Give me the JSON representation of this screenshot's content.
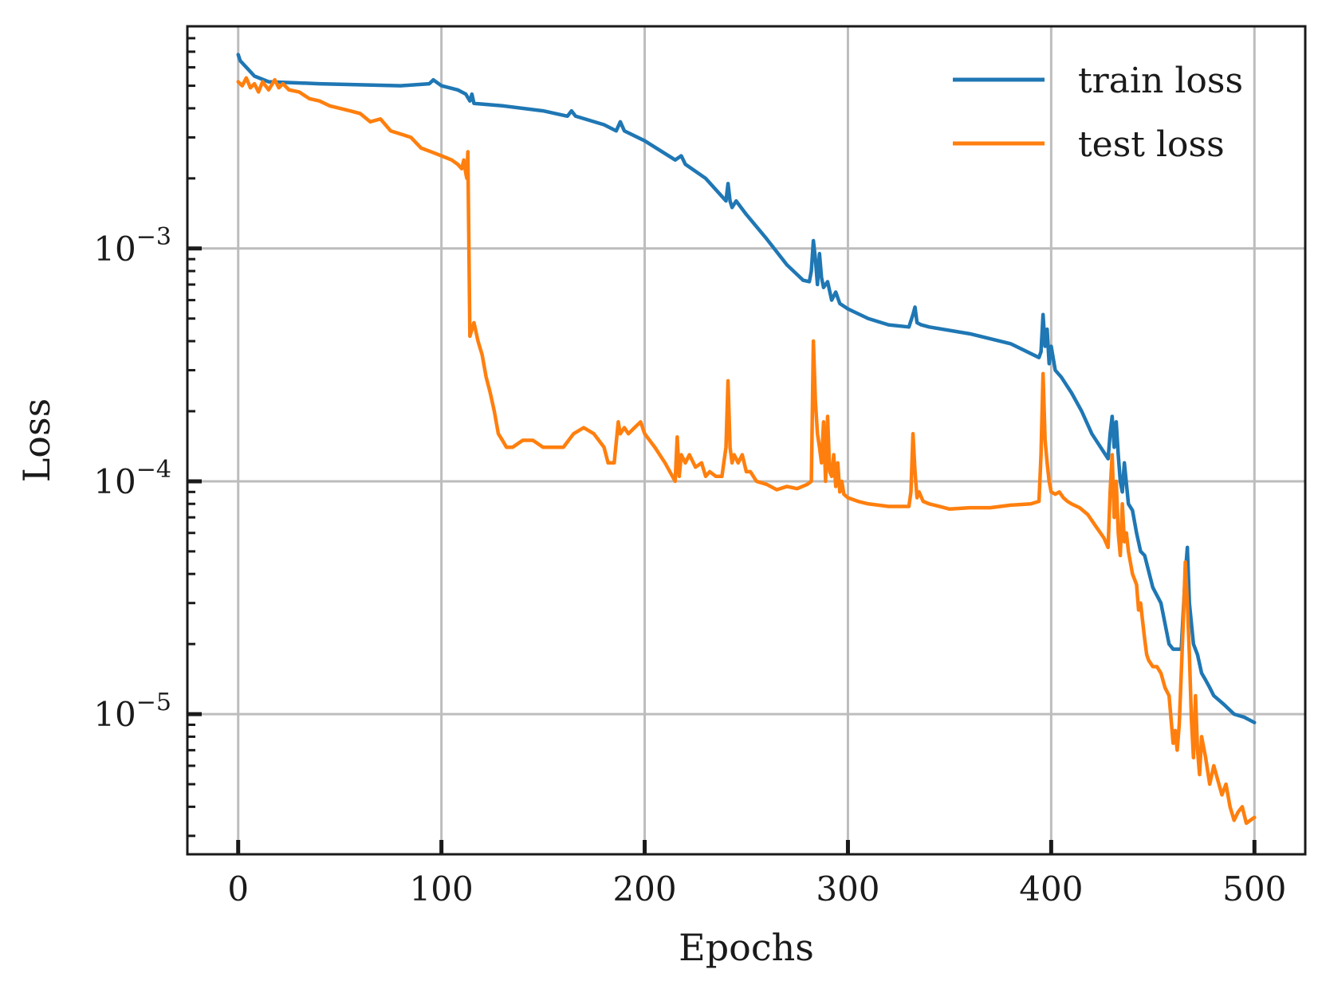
{
  "chart_data": {
    "type": "line",
    "title": "",
    "xlabel": "Epochs",
    "ylabel": "Loss",
    "xlim": [
      -25,
      525
    ],
    "ylim": [
      2.5e-06,
      0.009
    ],
    "yscale": "log",
    "x_ticks": [
      0,
      100,
      200,
      300,
      400,
      500
    ],
    "y_ticks": [
      {
        "value": 0.001,
        "base": "10",
        "exp": "−3"
      },
      {
        "value": 0.0001,
        "base": "10",
        "exp": "−4"
      },
      {
        "value": 1e-05,
        "base": "10",
        "exp": "−5"
      }
    ],
    "grid": true,
    "legend_position": "top-right",
    "series": [
      {
        "name": "train loss",
        "color": "#1f77b4",
        "x": [
          0,
          1,
          4,
          8,
          15,
          40,
          80,
          94,
          96,
          100,
          108,
          112,
          114,
          115,
          116,
          130,
          150,
          162,
          164,
          166,
          180,
          186,
          188,
          190,
          200,
          215,
          218,
          220,
          230,
          240,
          241,
          242,
          243,
          245,
          250,
          260,
          270,
          278,
          281,
          282,
          283,
          284,
          285,
          286,
          287,
          288,
          290,
          292,
          294,
          296,
          300,
          310,
          320,
          330,
          332,
          333,
          334,
          336,
          340,
          360,
          380,
          394,
          395,
          396,
          397,
          398,
          399,
          400,
          402,
          405,
          410,
          415,
          420,
          428,
          429,
          430,
          431,
          432,
          433,
          434,
          435,
          436,
          438,
          440,
          442,
          444,
          446,
          450,
          454,
          458,
          460,
          464,
          466,
          467,
          468,
          470,
          472,
          474,
          476,
          478,
          480,
          485,
          490,
          495,
          500
        ],
        "y": [
          0.0068,
          0.0064,
          0.006,
          0.0055,
          0.0052,
          0.0051,
          0.005,
          0.0051,
          0.0053,
          0.005,
          0.0048,
          0.0046,
          0.0043,
          0.0046,
          0.0042,
          0.0041,
          0.0039,
          0.0037,
          0.0039,
          0.0037,
          0.0034,
          0.0032,
          0.0035,
          0.0032,
          0.0029,
          0.0024,
          0.0025,
          0.0023,
          0.002,
          0.0016,
          0.0019,
          0.0016,
          0.0015,
          0.0016,
          0.0014,
          0.0011,
          0.00085,
          0.00073,
          0.00072,
          0.0008,
          0.00108,
          0.0009,
          0.0007,
          0.00095,
          0.00075,
          0.00068,
          0.00072,
          0.0006,
          0.00065,
          0.00058,
          0.00055,
          0.0005,
          0.00047,
          0.00046,
          0.00052,
          0.00056,
          0.00048,
          0.00047,
          0.00046,
          0.00043,
          0.00039,
          0.00034,
          0.00036,
          0.00052,
          0.00038,
          0.00045,
          0.00032,
          0.00038,
          0.0003,
          0.00028,
          0.00024,
          0.0002,
          0.00016,
          0.000125,
          0.00016,
          0.00019,
          0.00014,
          0.00018,
          0.00013,
          0.0001,
          9e-05,
          0.00012,
          8e-05,
          7.5e-05,
          6e-05,
          5e-05,
          4.8e-05,
          3.5e-05,
          3e-05,
          2e-05,
          1.9e-05,
          1.9e-05,
          4e-05,
          5.2e-05,
          3e-05,
          2e-05,
          1.8e-05,
          1.5e-05,
          1.4e-05,
          1.3e-05,
          1.2e-05,
          1.1e-05,
          1e-05,
          9.7e-06,
          9.2e-06
        ]
      },
      {
        "name": "test loss",
        "color": "#ff7f0e",
        "x": [
          0,
          2,
          4,
          6,
          8,
          10,
          12,
          15,
          18,
          20,
          22,
          25,
          30,
          35,
          40,
          45,
          50,
          55,
          60,
          65,
          70,
          75,
          80,
          85,
          90,
          95,
          100,
          105,
          108,
          110,
          111,
          112,
          112.5,
          113,
          114,
          116,
          118,
          120,
          122,
          124,
          126,
          128,
          130,
          132,
          135,
          140,
          145,
          150,
          155,
          160,
          165,
          170,
          175,
          180,
          182,
          185,
          187,
          188,
          190,
          192,
          195,
          198,
          200,
          205,
          210,
          215,
          216,
          217,
          218,
          220,
          222,
          225,
          228,
          230,
          232,
          235,
          238,
          240,
          241,
          242,
          243,
          244,
          246,
          248,
          250,
          252,
          255,
          260,
          265,
          270,
          275,
          280,
          282,
          283,
          284,
          285,
          286,
          287,
          288,
          289,
          290,
          291,
          292,
          293,
          294,
          295,
          296,
          297,
          298,
          300,
          305,
          310,
          320,
          330,
          331,
          332,
          333,
          334,
          335,
          337,
          340,
          345,
          350,
          360,
          370,
          380,
          390,
          394,
          395,
          396,
          397,
          398,
          399,
          400,
          402,
          404,
          406,
          408,
          410,
          414,
          418,
          422,
          426,
          428,
          429,
          430,
          431,
          432,
          433,
          434,
          435,
          436,
          437,
          438,
          440,
          442,
          443,
          444,
          445,
          446,
          447,
          448,
          450,
          452,
          454,
          456,
          458,
          460,
          461,
          462,
          463,
          464,
          465,
          466,
          467,
          468,
          469,
          470,
          471,
          472,
          473,
          474,
          476,
          478,
          480,
          482,
          484,
          486,
          488,
          490,
          492,
          494,
          496,
          498,
          500
        ],
        "y": [
          0.0052,
          0.005,
          0.0054,
          0.0049,
          0.0051,
          0.0047,
          0.0052,
          0.0048,
          0.0053,
          0.0049,
          0.0051,
          0.0048,
          0.0047,
          0.0044,
          0.0043,
          0.0041,
          0.004,
          0.0039,
          0.0038,
          0.0035,
          0.0036,
          0.0032,
          0.0031,
          0.003,
          0.0027,
          0.0026,
          0.0025,
          0.0024,
          0.0023,
          0.0022,
          0.0024,
          0.0021,
          0.002,
          0.0026,
          0.00042,
          0.00048,
          0.0004,
          0.00035,
          0.00028,
          0.00024,
          0.0002,
          0.00016,
          0.00015,
          0.00014,
          0.00014,
          0.00015,
          0.00015,
          0.00014,
          0.00014,
          0.00014,
          0.00016,
          0.00017,
          0.00016,
          0.00014,
          0.00012,
          0.00012,
          0.00018,
          0.00016,
          0.00017,
          0.00016,
          0.00017,
          0.00018,
          0.00016,
          0.00014,
          0.00012,
          0.0001,
          0.000155,
          0.000105,
          0.00013,
          0.00012,
          0.00013,
          0.000115,
          0.00012,
          0.000105,
          0.00011,
          0.000105,
          0.000105,
          0.00014,
          0.00027,
          0.00014,
          0.00012,
          0.00013,
          0.00012,
          0.00013,
          0.00011,
          0.00011,
          0.0001,
          9.7e-05,
          9.2e-05,
          9.5e-05,
          9.3e-05,
          9.7e-05,
          0.0001,
          0.0004,
          0.00022,
          0.00016,
          0.00014,
          0.00012,
          0.00018,
          0.0001,
          0.00019,
          0.00011,
          0.000105,
          0.00013,
          9.5e-05,
          0.00012,
          9e-05,
          0.0001,
          8.8e-05,
          8.5e-05,
          8.2e-05,
          8e-05,
          7.8e-05,
          7.8e-05,
          9e-05,
          0.00016,
          0.00011,
          8.5e-05,
          9e-05,
          8.2e-05,
          8e-05,
          7.8e-05,
          7.6e-05,
          7.7e-05,
          7.7e-05,
          7.9e-05,
          8e-05,
          8.2e-05,
          0.00013,
          0.00029,
          0.00015,
          0.00012,
          0.0001,
          9e-05,
          8.8e-05,
          9e-05,
          8.5e-05,
          8.2e-05,
          8e-05,
          7.7e-05,
          7.2e-05,
          6.4e-05,
          5.7e-05,
          5.2e-05,
          9e-05,
          0.00013,
          7e-05,
          0.0001,
          6e-05,
          4.8e-05,
          8e-05,
          5.5e-05,
          6e-05,
          5e-05,
          4e-05,
          3.6e-05,
          2.8e-05,
          3e-05,
          2.5e-05,
          2.1e-05,
          1.8e-05,
          1.7e-05,
          1.6e-05,
          1.6e-05,
          1.5e-05,
          1.3e-05,
          1.2e-05,
          7.5e-06,
          8.5e-06,
          7e-06,
          9e-06,
          1.5e-05,
          2.5e-05,
          4.5e-05,
          3e-05,
          1.8e-05,
          9.5e-06,
          6.5e-06,
          1.2e-05,
          7e-06,
          5.5e-06,
          8e-06,
          6.5e-06,
          5e-06,
          6e-06,
          5.2e-06,
          4.5e-06,
          5e-06,
          4e-06,
          3.5e-06,
          3.8e-06,
          4e-06,
          3.4e-06,
          3.5e-06,
          3.6e-06
        ]
      }
    ]
  }
}
